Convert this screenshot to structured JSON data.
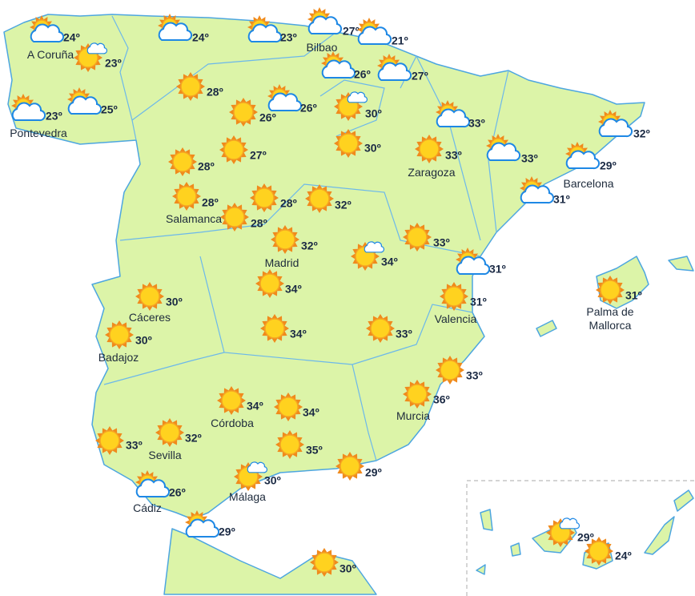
{
  "markers": [
    {
      "temp": "24º",
      "city": "A Coruña",
      "icon": "sun-cloud"
    },
    {
      "temp": "23º",
      "icon": "sun-small-cloud"
    },
    {
      "temp": "23º",
      "city": "Pontevedra",
      "icon": "sun-cloud"
    },
    {
      "temp": "25º",
      "icon": "sun-cloud"
    },
    {
      "temp": "24º",
      "icon": "sun-cloud"
    },
    {
      "temp": "23º",
      "icon": "sun-cloud"
    },
    {
      "temp": "27º",
      "city": "Bilbao",
      "icon": "sun-cloud"
    },
    {
      "temp": "21º",
      "icon": "sun-cloud"
    },
    {
      "temp": "26º",
      "icon": "sun-cloud"
    },
    {
      "temp": "27º",
      "icon": "sun-cloud"
    },
    {
      "temp": "28º",
      "icon": "sun"
    },
    {
      "temp": "26º",
      "icon": "sun"
    },
    {
      "temp": "26º",
      "icon": "sun-cloud"
    },
    {
      "temp": "30º",
      "icon": "sun-small-cloud"
    },
    {
      "temp": "30º",
      "icon": "sun"
    },
    {
      "temp": "33º",
      "icon": "sun-cloud"
    },
    {
      "temp": "33º",
      "city": "Zaragoza",
      "icon": "sun"
    },
    {
      "temp": "33º",
      "icon": "sun-cloud"
    },
    {
      "temp": "32º",
      "icon": "sun-cloud"
    },
    {
      "temp": "29º",
      "city": "Barcelona",
      "icon": "sun-cloud"
    },
    {
      "temp": "31º",
      "icon": "sun-cloud"
    },
    {
      "temp": "28º",
      "icon": "sun"
    },
    {
      "temp": "27º",
      "icon": "sun"
    },
    {
      "temp": "28º",
      "city": "Salamanca",
      "icon": "sun"
    },
    {
      "temp": "28º",
      "icon": "sun"
    },
    {
      "temp": "28º",
      "icon": "sun"
    },
    {
      "temp": "32º",
      "icon": "sun"
    },
    {
      "temp": "32º",
      "city": "Madrid",
      "icon": "sun"
    },
    {
      "temp": "34º",
      "icon": "sun-small-cloud"
    },
    {
      "temp": "33º",
      "icon": "sun"
    },
    {
      "temp": "31º",
      "icon": "sun-cloud"
    },
    {
      "temp": "30º",
      "city": "Cáceres",
      "icon": "sun"
    },
    {
      "temp": "30º",
      "city": "Badajoz",
      "icon": "sun"
    },
    {
      "temp": "34º",
      "icon": "sun"
    },
    {
      "temp": "34º",
      "icon": "sun"
    },
    {
      "temp": "33º",
      "icon": "sun"
    },
    {
      "temp": "31º",
      "city": "Valencia",
      "icon": "sun"
    },
    {
      "temp": "31º",
      "city": "Palma de Mallorca",
      "icon": "sun"
    },
    {
      "temp": "33º",
      "icon": "sun"
    },
    {
      "temp": "36º",
      "city": "Murcia",
      "icon": "sun"
    },
    {
      "temp": "34º",
      "city": "Córdoba",
      "icon": "sun"
    },
    {
      "temp": "34º",
      "icon": "sun"
    },
    {
      "temp": "32º",
      "city": "Sevilla",
      "icon": "sun"
    },
    {
      "temp": "33º",
      "icon": "sun"
    },
    {
      "temp": "35º",
      "icon": "sun"
    },
    {
      "temp": "29º",
      "icon": "sun"
    },
    {
      "temp": "30º",
      "city": "Málaga",
      "icon": "sun-small-cloud"
    },
    {
      "temp": "26º",
      "city": "Cádiz",
      "icon": "sun-cloud"
    },
    {
      "temp": "29º",
      "icon": "sun-cloud"
    },
    {
      "temp": "30º",
      "icon": "sun"
    },
    {
      "temp": "29º",
      "icon": "sun-small-cloud"
    },
    {
      "temp": "24º",
      "icon": "sun"
    }
  ]
}
